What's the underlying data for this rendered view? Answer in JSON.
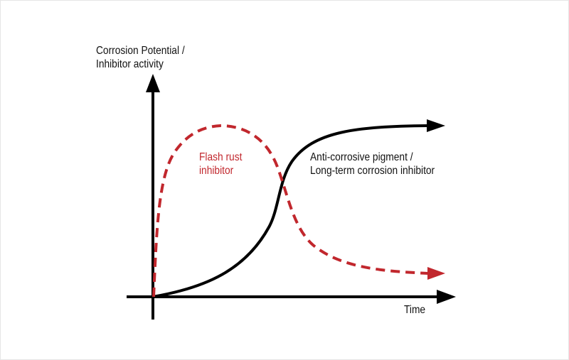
{
  "diagram": {
    "y_axis_label_line1": "Corrosion Potential /",
    "y_axis_label_line2": "Inhibitor activity",
    "x_axis_label": "Time",
    "curves": [
      {
        "label_line1": "Flash rust",
        "label_line2": "inhibitor",
        "style": "dashed",
        "color": "#c1272d",
        "trend": "rapid rise, peak early, then decay"
      },
      {
        "label_line1": "Anti-corrosive pigment /",
        "label_line2": "Long-term corrosion inhibitor",
        "style": "solid",
        "color": "#000000",
        "trend": "slow sigmoid rise to plateau"
      }
    ]
  }
}
